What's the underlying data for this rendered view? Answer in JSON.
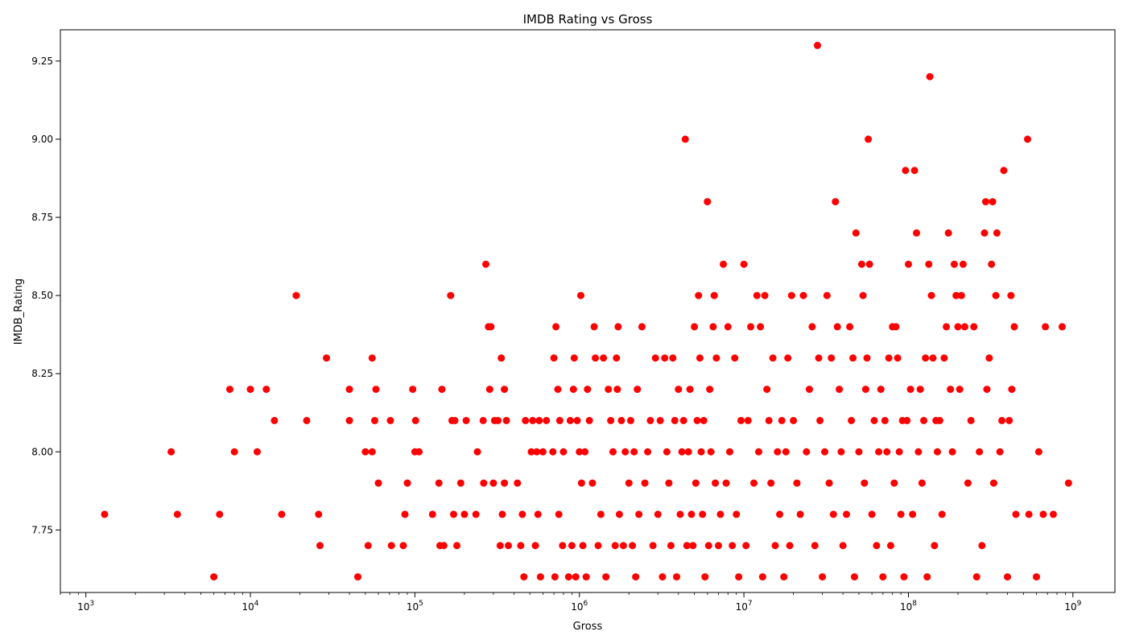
{
  "chart_data": {
    "type": "scatter",
    "title": "IMDB Rating vs Gross",
    "xlabel": "Gross",
    "ylabel": "IMDB_Rating",
    "x_scale": "log",
    "xlim": [
      700,
      1800000000
    ],
    "ylim": [
      7.55,
      9.35
    ],
    "grid": false,
    "marker_color": "#ff0000",
    "x_ticks": [
      {
        "value": 1000,
        "base": "10",
        "exp": "3"
      },
      {
        "value": 10000,
        "base": "10",
        "exp": "4"
      },
      {
        "value": 100000,
        "base": "10",
        "exp": "5"
      },
      {
        "value": 1000000,
        "base": "10",
        "exp": "6"
      },
      {
        "value": 10000000,
        "base": "10",
        "exp": "7"
      },
      {
        "value": 100000000,
        "base": "10",
        "exp": "8"
      },
      {
        "value": 1000000000,
        "base": "10",
        "exp": "9"
      }
    ],
    "y_ticks": [
      {
        "value": 7.75,
        "label": "7.75"
      },
      {
        "value": 8.0,
        "label": "8.00"
      },
      {
        "value": 8.25,
        "label": "8.25"
      },
      {
        "value": 8.5,
        "label": "8.50"
      },
      {
        "value": 8.75,
        "label": "8.75"
      },
      {
        "value": 9.0,
        "label": "9.00"
      },
      {
        "value": 9.25,
        "label": "9.25"
      }
    ],
    "points": [
      [
        1300,
        7.8
      ],
      [
        3300,
        8.0
      ],
      [
        3600,
        7.8
      ],
      [
        6000,
        7.6
      ],
      [
        6500,
        7.8
      ],
      [
        7500,
        8.2
      ],
      [
        8000,
        8.0
      ],
      [
        10000,
        8.2
      ],
      [
        11000,
        8.0
      ],
      [
        12500,
        8.2
      ],
      [
        14000,
        8.1
      ],
      [
        15500,
        7.8
      ],
      [
        19000,
        8.5
      ],
      [
        22000,
        8.1
      ],
      [
        26000,
        7.8
      ],
      [
        26500,
        7.7
      ],
      [
        29000,
        8.3
      ],
      [
        40000,
        8.2
      ],
      [
        40000,
        8.1
      ],
      [
        45000,
        7.6
      ],
      [
        50000,
        8.0
      ],
      [
        52000,
        7.7
      ],
      [
        55000,
        8.0
      ],
      [
        55000,
        8.3
      ],
      [
        57000,
        8.1
      ],
      [
        58000,
        8.2
      ],
      [
        60000,
        7.9
      ],
      [
        71000,
        8.1
      ],
      [
        72000,
        7.7
      ],
      [
        85000,
        7.7
      ],
      [
        87000,
        7.8
      ],
      [
        90000,
        7.9
      ],
      [
        97000,
        8.2
      ],
      [
        100000,
        8.0
      ],
      [
        101000,
        8.1
      ],
      [
        106000,
        8.0
      ],
      [
        128000,
        7.8
      ],
      [
        140000,
        7.9
      ],
      [
        142000,
        7.7
      ],
      [
        146000,
        8.2
      ],
      [
        150000,
        7.7
      ],
      [
        165000,
        8.5
      ],
      [
        168000,
        8.1
      ],
      [
        172000,
        7.8
      ],
      [
        175000,
        8.1
      ],
      [
        180000,
        7.7
      ],
      [
        190000,
        7.9
      ],
      [
        200000,
        7.8
      ],
      [
        205000,
        8.1
      ],
      [
        235000,
        7.8
      ],
      [
        240000,
        8.0
      ],
      [
        260000,
        8.1
      ],
      [
        262000,
        7.9
      ],
      [
        270000,
        8.6
      ],
      [
        280000,
        8.4
      ],
      [
        285000,
        8.2
      ],
      [
        290000,
        8.4
      ],
      [
        300000,
        7.9
      ],
      [
        305000,
        8.1
      ],
      [
        320000,
        8.1
      ],
      [
        330000,
        7.7
      ],
      [
        335000,
        8.3
      ],
      [
        340000,
        7.8
      ],
      [
        350000,
        8.2
      ],
      [
        350000,
        7.9
      ],
      [
        360000,
        8.1
      ],
      [
        370000,
        7.7
      ],
      [
        420000,
        7.9
      ],
      [
        440000,
        7.7
      ],
      [
        450000,
        7.8
      ],
      [
        460000,
        7.6
      ],
      [
        470000,
        8.1
      ],
      [
        510000,
        8.0
      ],
      [
        520000,
        8.1
      ],
      [
        540000,
        7.7
      ],
      [
        550000,
        8.0
      ],
      [
        560000,
        7.8
      ],
      [
        570000,
        8.1
      ],
      [
        580000,
        7.6
      ],
      [
        600000,
        8.0
      ],
      [
        630000,
        8.1
      ],
      [
        690000,
        8.0
      ],
      [
        700000,
        8.3
      ],
      [
        710000,
        7.6
      ],
      [
        720000,
        8.4
      ],
      [
        740000,
        8.2
      ],
      [
        750000,
        7.8
      ],
      [
        760000,
        8.1
      ],
      [
        790000,
        7.7
      ],
      [
        800000,
        8.0
      ],
      [
        860000,
        7.6
      ],
      [
        880000,
        8.1
      ],
      [
        900000,
        7.7
      ],
      [
        920000,
        8.2
      ],
      [
        930000,
        8.3
      ],
      [
        950000,
        7.6
      ],
      [
        970000,
        8.1
      ],
      [
        1000000,
        8.0
      ],
      [
        1020000,
        8.5
      ],
      [
        1030000,
        7.9
      ],
      [
        1050000,
        7.7
      ],
      [
        1080000,
        8.0
      ],
      [
        1100000,
        7.6
      ],
      [
        1120000,
        8.2
      ],
      [
        1150000,
        8.1
      ],
      [
        1200000,
        7.9
      ],
      [
        1230000,
        8.4
      ],
      [
        1250000,
        8.3
      ],
      [
        1300000,
        7.7
      ],
      [
        1350000,
        7.8
      ],
      [
        1400000,
        8.3
      ],
      [
        1450000,
        7.6
      ],
      [
        1500000,
        8.2
      ],
      [
        1550000,
        8.1
      ],
      [
        1600000,
        8.0
      ],
      [
        1650000,
        7.7
      ],
      [
        1680000,
        8.3
      ],
      [
        1700000,
        8.2
      ],
      [
        1720000,
        8.4
      ],
      [
        1750000,
        7.8
      ],
      [
        1800000,
        8.1
      ],
      [
        1850000,
        7.7
      ],
      [
        1900000,
        8.0
      ],
      [
        2000000,
        7.9
      ],
      [
        2050000,
        8.1
      ],
      [
        2100000,
        7.7
      ],
      [
        2150000,
        8.0
      ],
      [
        2200000,
        7.6
      ],
      [
        2250000,
        8.2
      ],
      [
        2300000,
        7.8
      ],
      [
        2400000,
        8.4
      ],
      [
        2500000,
        7.9
      ],
      [
        2600000,
        8.0
      ],
      [
        2700000,
        8.1
      ],
      [
        2800000,
        7.7
      ],
      [
        2900000,
        8.3
      ],
      [
        3000000,
        7.8
      ],
      [
        3100000,
        8.1
      ],
      [
        3200000,
        7.6
      ],
      [
        3300000,
        8.3
      ],
      [
        3400000,
        8.0
      ],
      [
        3500000,
        7.9
      ],
      [
        3600000,
        7.7
      ],
      [
        3700000,
        8.3
      ],
      [
        3800000,
        8.1
      ],
      [
        3900000,
        7.6
      ],
      [
        4000000,
        8.2
      ],
      [
        4100000,
        7.8
      ],
      [
        4200000,
        8.0
      ],
      [
        4300000,
        8.1
      ],
      [
        4400000,
        9.0
      ],
      [
        4500000,
        7.7
      ],
      [
        4600000,
        8.0
      ],
      [
        4700000,
        8.2
      ],
      [
        4800000,
        7.8
      ],
      [
        4900000,
        7.7
      ],
      [
        5000000,
        8.4
      ],
      [
        5100000,
        7.9
      ],
      [
        5200000,
        8.1
      ],
      [
        5300000,
        8.5
      ],
      [
        5400000,
        8.3
      ],
      [
        5500000,
        8.0
      ],
      [
        5600000,
        7.8
      ],
      [
        5700000,
        8.1
      ],
      [
        5800000,
        7.6
      ],
      [
        6000000,
        8.8
      ],
      [
        6100000,
        7.7
      ],
      [
        6200000,
        8.2
      ],
      [
        6300000,
        8.0
      ],
      [
        6500000,
        8.4
      ],
      [
        6600000,
        8.5
      ],
      [
        6700000,
        7.9
      ],
      [
        6800000,
        8.3
      ],
      [
        7000000,
        7.7
      ],
      [
        7200000,
        7.8
      ],
      [
        7500000,
        8.6
      ],
      [
        7800000,
        7.9
      ],
      [
        8000000,
        8.4
      ],
      [
        8200000,
        8.0
      ],
      [
        8500000,
        7.7
      ],
      [
        8800000,
        8.3
      ],
      [
        9000000,
        7.8
      ],
      [
        9300000,
        7.6
      ],
      [
        9600000,
        8.1
      ],
      [
        10000000,
        8.6
      ],
      [
        10300000,
        7.7
      ],
      [
        10600000,
        8.1
      ],
      [
        11000000,
        8.4
      ],
      [
        11500000,
        7.9
      ],
      [
        12000000,
        8.5
      ],
      [
        12300000,
        8.0
      ],
      [
        12600000,
        8.4
      ],
      [
        13000000,
        7.6
      ],
      [
        13400000,
        8.5
      ],
      [
        13800000,
        8.2
      ],
      [
        14200000,
        8.1
      ],
      [
        14600000,
        7.9
      ],
      [
        15000000,
        8.3
      ],
      [
        15500000,
        7.7
      ],
      [
        16000000,
        8.0
      ],
      [
        16500000,
        7.8
      ],
      [
        17000000,
        8.1
      ],
      [
        17500000,
        7.6
      ],
      [
        18000000,
        8.0
      ],
      [
        18500000,
        8.3
      ],
      [
        19000000,
        7.7
      ],
      [
        19500000,
        8.5
      ],
      [
        20000000,
        8.1
      ],
      [
        21000000,
        7.9
      ],
      [
        22000000,
        7.8
      ],
      [
        23000000,
        8.5
      ],
      [
        24000000,
        8.0
      ],
      [
        25000000,
        8.2
      ],
      [
        26000000,
        8.4
      ],
      [
        27000000,
        7.7
      ],
      [
        28000000,
        9.3
      ],
      [
        28500000,
        8.3
      ],
      [
        29000000,
        8.1
      ],
      [
        30000000,
        7.6
      ],
      [
        31000000,
        8.0
      ],
      [
        32000000,
        8.5
      ],
      [
        33000000,
        7.9
      ],
      [
        34000000,
        8.3
      ],
      [
        35000000,
        7.8
      ],
      [
        36000000,
        8.8
      ],
      [
        37000000,
        8.4
      ],
      [
        38000000,
        8.2
      ],
      [
        39000000,
        8.0
      ],
      [
        40000000,
        7.7
      ],
      [
        42000000,
        7.8
      ],
      [
        44000000,
        8.4
      ],
      [
        45000000,
        8.1
      ],
      [
        46000000,
        8.3
      ],
      [
        47000000,
        7.6
      ],
      [
        48000000,
        8.7
      ],
      [
        50000000,
        8.0
      ],
      [
        52000000,
        8.6
      ],
      [
        53000000,
        8.5
      ],
      [
        54000000,
        7.9
      ],
      [
        55000000,
        8.2
      ],
      [
        56000000,
        8.3
      ],
      [
        57000000,
        9.0
      ],
      [
        58000000,
        8.6
      ],
      [
        60000000,
        7.8
      ],
      [
        62000000,
        8.1
      ],
      [
        64000000,
        7.7
      ],
      [
        66000000,
        8.0
      ],
      [
        68000000,
        8.2
      ],
      [
        70000000,
        7.6
      ],
      [
        72000000,
        8.1
      ],
      [
        74000000,
        8.0
      ],
      [
        76000000,
        8.3
      ],
      [
        78000000,
        7.7
      ],
      [
        80000000,
        8.4
      ],
      [
        82000000,
        7.9
      ],
      [
        84000000,
        8.4
      ],
      [
        86000000,
        8.3
      ],
      [
        88000000,
        8.0
      ],
      [
        90000000,
        7.8
      ],
      [
        92000000,
        8.1
      ],
      [
        94000000,
        7.6
      ],
      [
        96000000,
        8.9
      ],
      [
        98000000,
        8.1
      ],
      [
        100000000,
        8.6
      ],
      [
        103000000,
        8.2
      ],
      [
        106000000,
        7.8
      ],
      [
        109000000,
        8.9
      ],
      [
        112000000,
        8.7
      ],
      [
        115000000,
        8.0
      ],
      [
        118000000,
        8.2
      ],
      [
        121000000,
        7.9
      ],
      [
        124000000,
        8.1
      ],
      [
        127000000,
        8.3
      ],
      [
        130000000,
        7.6
      ],
      [
        133000000,
        8.6
      ],
      [
        135000000,
        9.2
      ],
      [
        138000000,
        8.5
      ],
      [
        141000000,
        8.3
      ],
      [
        144000000,
        7.7
      ],
      [
        147000000,
        8.1
      ],
      [
        150000000,
        8.0
      ],
      [
        155000000,
        8.1
      ],
      [
        160000000,
        7.8
      ],
      [
        165000000,
        8.3
      ],
      [
        170000000,
        8.4
      ],
      [
        175000000,
        8.7
      ],
      [
        180000000,
        8.2
      ],
      [
        185000000,
        8.0
      ],
      [
        190000000,
        8.6
      ],
      [
        195000000,
        8.5
      ],
      [
        200000000,
        8.4
      ],
      [
        205000000,
        8.2
      ],
      [
        210000000,
        8.5
      ],
      [
        215000000,
        8.6
      ],
      [
        220000000,
        8.4
      ],
      [
        230000000,
        7.9
      ],
      [
        240000000,
        8.1
      ],
      [
        250000000,
        8.4
      ],
      [
        260000000,
        7.6
      ],
      [
        270000000,
        8.0
      ],
      [
        280000000,
        7.7
      ],
      [
        290000000,
        8.7
      ],
      [
        295000000,
        8.8
      ],
      [
        300000000,
        8.2
      ],
      [
        310000000,
        8.3
      ],
      [
        320000000,
        8.6
      ],
      [
        325000000,
        8.8
      ],
      [
        330000000,
        7.9
      ],
      [
        340000000,
        8.5
      ],
      [
        345000000,
        8.7
      ],
      [
        360000000,
        8.0
      ],
      [
        370000000,
        8.1
      ],
      [
        380000000,
        8.9
      ],
      [
        400000000,
        7.6
      ],
      [
        410000000,
        8.1
      ],
      [
        420000000,
        8.5
      ],
      [
        425000000,
        8.2
      ],
      [
        440000000,
        8.4
      ],
      [
        450000000,
        7.8
      ],
      [
        530000000,
        9.0
      ],
      [
        540000000,
        7.8
      ],
      [
        600000000,
        7.6
      ],
      [
        620000000,
        8.0
      ],
      [
        660000000,
        7.8
      ],
      [
        680000000,
        8.4
      ],
      [
        760000000,
        7.8
      ],
      [
        860000000,
        8.4
      ],
      [
        940000000,
        7.9
      ]
    ]
  }
}
